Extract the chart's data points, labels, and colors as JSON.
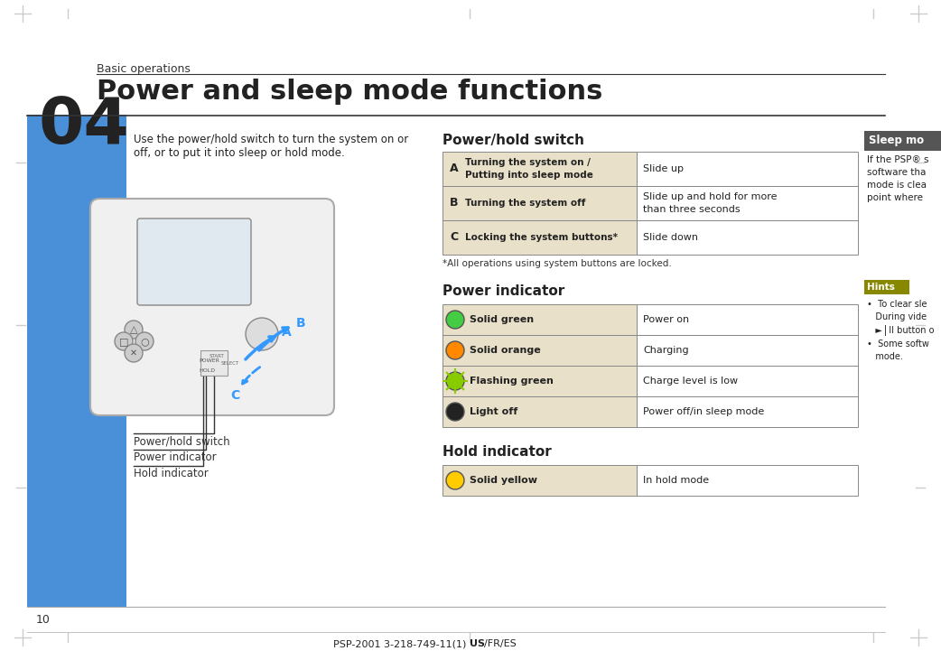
{
  "page_num": "10",
  "product_code": "PSP-2001 3-218-749-11(1) US/FR/ES",
  "chapter_num": "04",
  "chapter_label": "Basic operations",
  "title": "Power and sleep mode functions",
  "intro_text": "Use the power/hold switch to turn the system on or\noff, or to put it into sleep or hold mode.",
  "bg_color": "#ffffff",
  "left_bar_color": "#4a90d9",
  "header_bg": "#ffffff",
  "section_bg": "#e8e0c8",
  "table_border": "#888888",
  "power_switch_title": "Power/hold switch",
  "power_switch_rows": [
    {
      "key": "A",
      "label": "Turning the system on /\nPutting into sleep mode",
      "value": "Slide up"
    },
    {
      "key": "B",
      "label": "Turning the system off",
      "value": "Slide up and hold for more\nthan three seconds"
    },
    {
      "key": "C",
      "label": "Locking the system buttons*",
      "value": "Slide down"
    }
  ],
  "footnote": "*All operations using system buttons are locked.",
  "power_indicator_title": "Power indicator",
  "power_indicator_rows": [
    {
      "color": "#44cc44",
      "label": "Solid green",
      "value": "Power on",
      "style": "solid"
    },
    {
      "color": "#ff8800",
      "label": "Solid orange",
      "value": "Charging",
      "style": "solid"
    },
    {
      "color": "#88cc00",
      "label": "Flashing green",
      "value": "Charge level is low",
      "style": "flash"
    },
    {
      "color": "#222222",
      "label": "Light off",
      "value": "Power off/in sleep mode",
      "style": "solid"
    }
  ],
  "hold_indicator_title": "Hold indicator",
  "hold_indicator_rows": [
    {
      "color": "#ffcc00",
      "label": "Solid yellow",
      "value": "In hold mode",
      "style": "solid"
    }
  ],
  "sleep_mode_title": "Sleep mo",
  "sleep_mode_text": "If the PSP® s\nsoftware tha\nmode is clea\npoint where",
  "hints_title": "Hints",
  "hints_text": "•  To clear sle\n   During vide\n   ►⎪II button o\n•  Some softw\n   mode.",
  "label_a": "A",
  "label_b": "B",
  "label_c": "C",
  "diagram_labels": [
    "Power/hold switch",
    "Power indicator",
    "Hold indicator"
  ]
}
